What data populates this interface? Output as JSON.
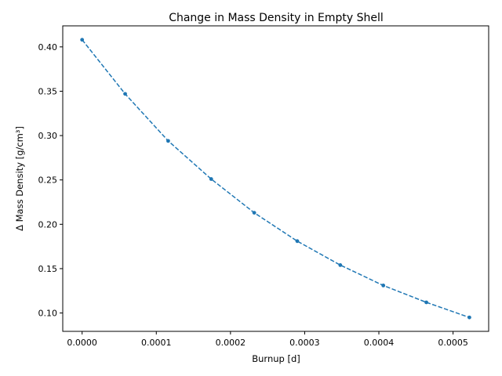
{
  "chart_data": {
    "type": "line",
    "title": "Change in Mass Density in Empty Shell",
    "xlabel": "Burnup [d]",
    "ylabel": "Δ Mass Density [g/cm³]",
    "series": [
      {
        "color": "#1f77b4",
        "linestyle": "dashed",
        "marker": "point",
        "x": [
          0.0,
          5.8e-05,
          0.000116,
          0.000174,
          0.000232,
          0.00029,
          0.000348,
          0.000406,
          0.000464,
          0.000522
        ],
        "y": [
          0.408,
          0.347,
          0.294,
          0.251,
          0.213,
          0.181,
          0.154,
          0.131,
          0.112,
          0.095
        ]
      }
    ],
    "xlim": [
      -2.61e-05,
      0.000548
    ],
    "ylim": [
      0.0793,
      0.4237
    ],
    "xticks": [
      0.0,
      0.0001,
      0.0002,
      0.0003,
      0.0004,
      0.0005
    ],
    "xtick_labels": [
      "0.0000",
      "0.0001",
      "0.0002",
      "0.0003",
      "0.0004",
      "0.0005"
    ],
    "yticks": [
      0.1,
      0.15,
      0.2,
      0.25,
      0.3,
      0.35,
      0.4
    ],
    "ytick_labels": [
      "0.10",
      "0.15",
      "0.20",
      "0.25",
      "0.30",
      "0.35",
      "0.40"
    ],
    "grid": false,
    "legend": "none"
  }
}
